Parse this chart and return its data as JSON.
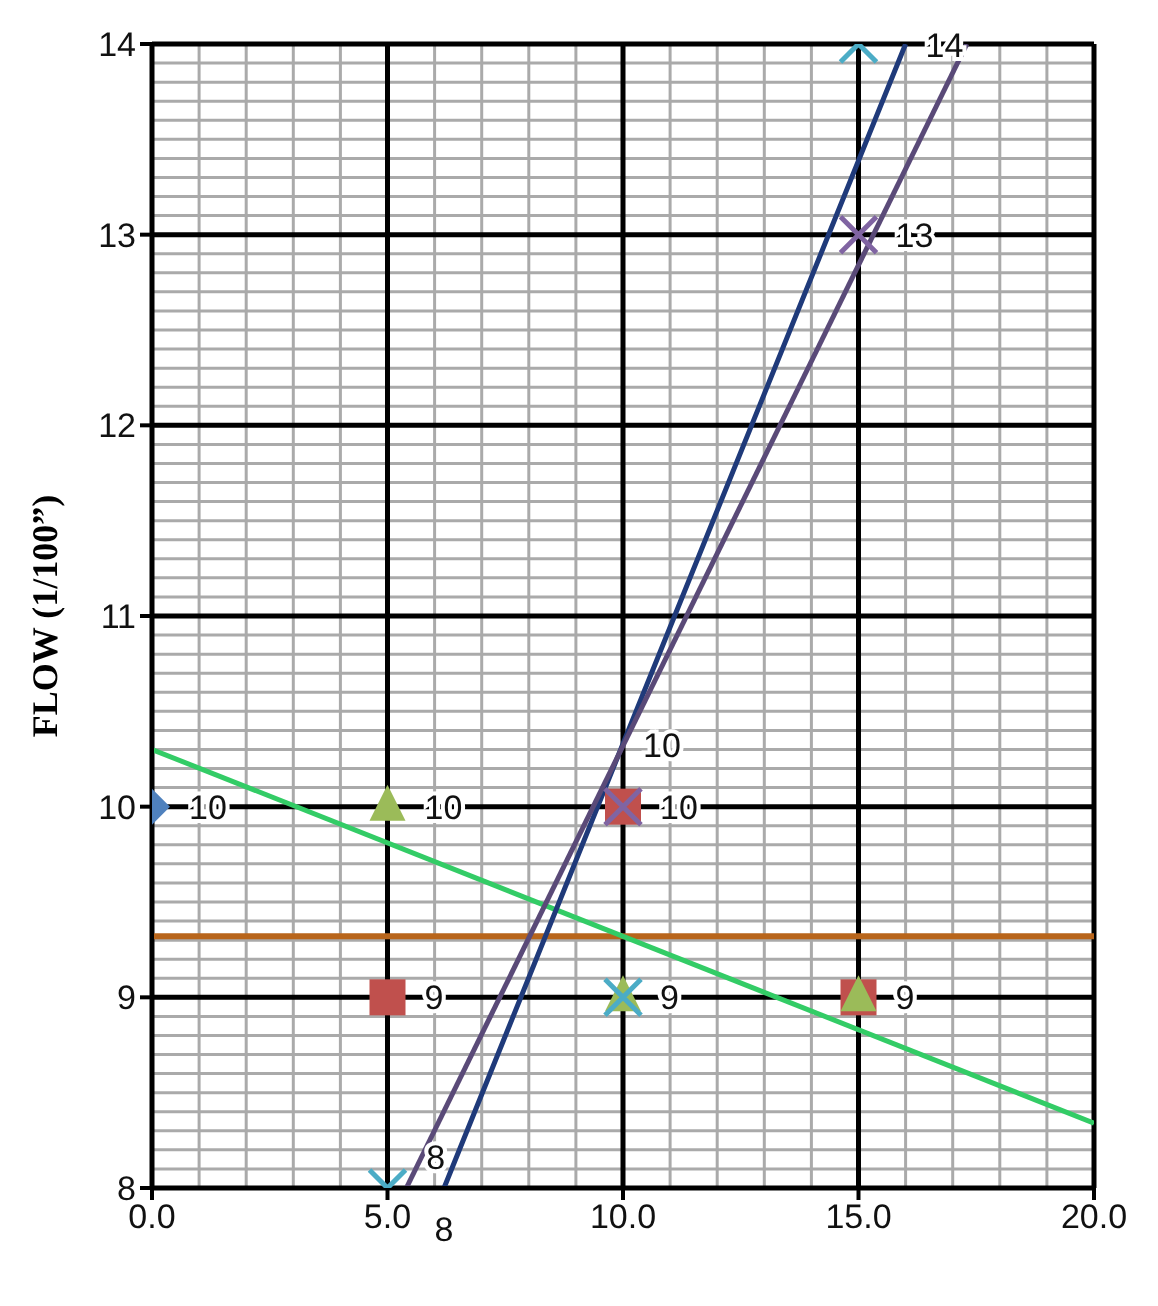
{
  "chart_data": {
    "type": "scatter",
    "ylabel": "FLOW (1/100”)",
    "xlim": [
      0,
      20
    ],
    "ylim": [
      8,
      14
    ],
    "xticks": [
      {
        "value": 0,
        "label": "0.0"
      },
      {
        "value": 5,
        "label": "5.0"
      },
      {
        "value": 10,
        "label": "10.0"
      },
      {
        "value": 15,
        "label": "15.0"
      },
      {
        "value": 20,
        "label": "20.0"
      }
    ],
    "yticks": [
      8,
      9,
      10,
      11,
      12,
      13,
      14
    ],
    "grid": true,
    "series": [
      {
        "type": "line",
        "color": "#33cc66",
        "x": [
          0,
          20
        ],
        "values": [
          10.3,
          8.34
        ]
      },
      {
        "type": "line",
        "color": "#1f3a7a",
        "x": [
          6.2,
          10,
          16.0
        ],
        "values": [
          8,
          10.33,
          14
        ],
        "value_labels": [
          "8",
          "10",
          "14"
        ]
      },
      {
        "type": "line",
        "color": "#5a4a78",
        "x": [
          5.4,
          17.3
        ],
        "values": [
          8,
          14
        ],
        "value_labels": [
          "8",
          null
        ]
      },
      {
        "type": "scatter",
        "marker": "diamond",
        "color": "#4f81bd",
        "x": [
          0
        ],
        "values": [
          10
        ],
        "value_labels": [
          "10"
        ]
      },
      {
        "type": "scatter",
        "marker": "square",
        "color": "#c0504d",
        "x": [
          5,
          10,
          15
        ],
        "values": [
          9,
          10,
          9
        ],
        "value_labels": [
          "9",
          "10",
          "9"
        ]
      },
      {
        "type": "scatter",
        "marker": "triangle",
        "color": "#9bbb59",
        "x": [
          5,
          10,
          15
        ],
        "values": [
          10,
          9,
          9
        ],
        "value_labels": [
          "10",
          null,
          null
        ]
      },
      {
        "type": "scatter",
        "marker": "cross",
        "color": "#8064a2",
        "x": [
          10,
          15
        ],
        "values": [
          10,
          13
        ],
        "value_labels": [
          null,
          "13"
        ]
      },
      {
        "type": "scatter",
        "marker": "cross",
        "color": "#4bacc6",
        "x": [
          5,
          10,
          15
        ],
        "values": [
          8,
          9,
          14
        ],
        "value_labels": [
          null,
          "9",
          null
        ]
      }
    ],
    "ref_lines": [
      {
        "axis": "y",
        "value": 9.32,
        "color": "#b8651b"
      }
    ]
  }
}
